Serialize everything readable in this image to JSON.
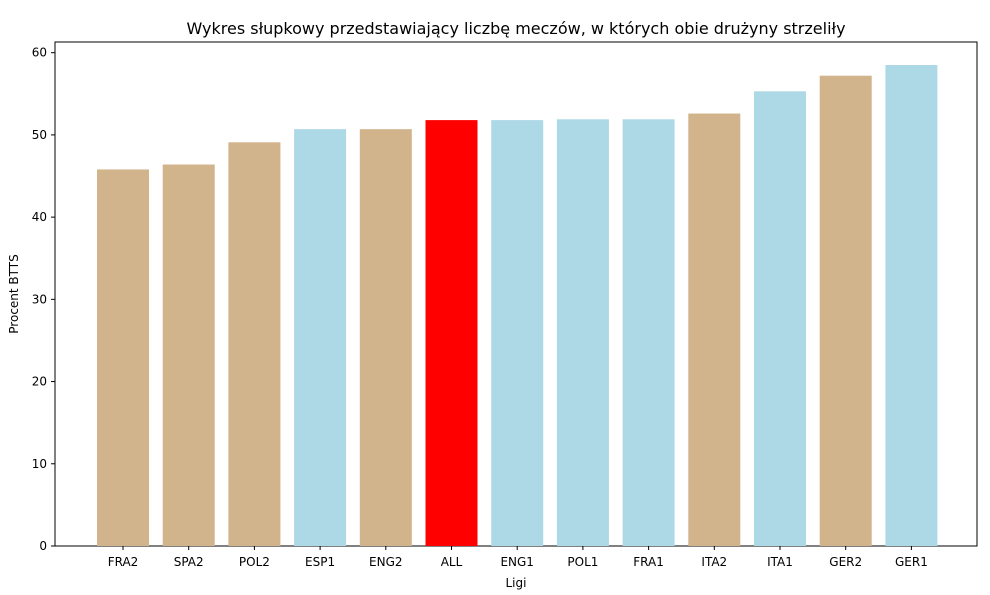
{
  "chart_data": {
    "type": "bar",
    "title": "Wykres słupkowy przedstawiający liczbę meczów, w których obie drużyny strzeliły",
    "xlabel": "Ligi",
    "ylabel": "Procent BTTS",
    "ylim": [
      0,
      61.3
    ],
    "yticks": [
      0,
      10,
      20,
      30,
      40,
      50,
      60
    ],
    "grid": false,
    "categories": [
      "FRA2",
      "SPA2",
      "POL2",
      "ESP1",
      "ENG2",
      "ALL",
      "ENG1",
      "POL1",
      "FRA1",
      "ITA2",
      "ITA1",
      "GER2",
      "GER1"
    ],
    "values": [
      45.8,
      46.4,
      49.1,
      50.7,
      50.7,
      51.8,
      51.8,
      51.9,
      51.9,
      52.6,
      55.3,
      57.2,
      58.5
    ],
    "colors": [
      "#d2b48c",
      "#d2b48c",
      "#d2b48c",
      "#add8e6",
      "#d2b48c",
      "#ff0000",
      "#add8e6",
      "#add8e6",
      "#add8e6",
      "#d2b48c",
      "#add8e6",
      "#d2b48c",
      "#add8e6"
    ]
  }
}
